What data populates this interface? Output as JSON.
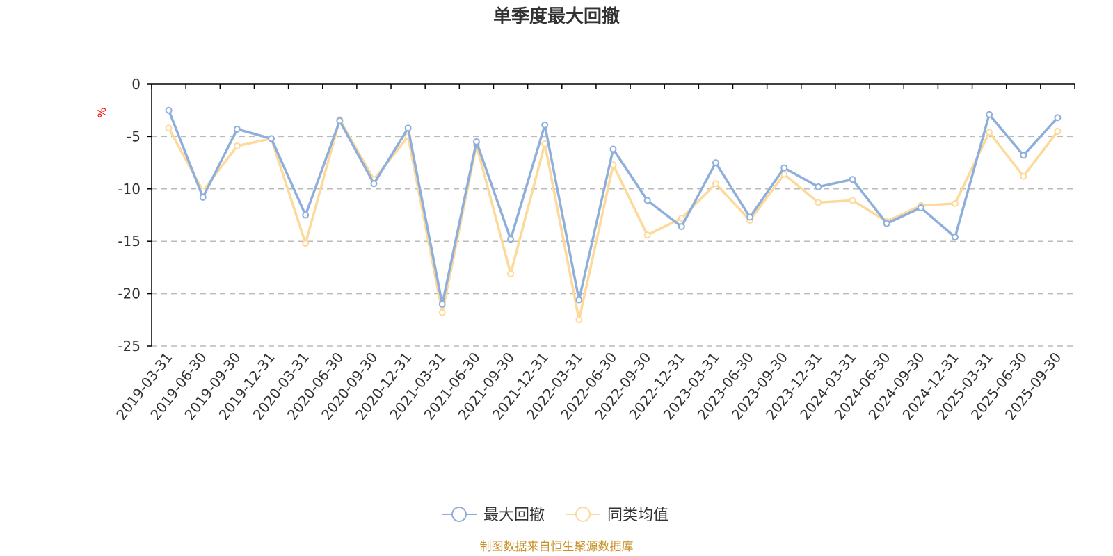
{
  "colors": {
    "max_drawdown": "#8eaedc",
    "peer_average": "#fdd99a",
    "axis": "#000000",
    "grid": "#bbbbbb",
    "source": "#c8922a"
  },
  "chart_data": {
    "type": "line",
    "title": "单季度最大回撤",
    "ylabel": "%",
    "ylim": [
      -25,
      0
    ],
    "yticks": [
      0,
      -5,
      -10,
      -15,
      -20,
      -25
    ],
    "grid": "horizontal dashed",
    "legend_position": "bottom-center",
    "categories": [
      "2019-03-31",
      "2019-06-30",
      "2019-09-30",
      "2019-12-31",
      "2020-03-31",
      "2020-06-30",
      "2020-09-30",
      "2020-12-31",
      "2021-03-31",
      "2021-06-30",
      "2021-09-30",
      "2021-12-31",
      "2022-03-31",
      "2022-06-30",
      "2022-09-30",
      "2022-12-31",
      "2023-03-31",
      "2023-06-30",
      "2023-09-30",
      "2023-12-31",
      "2024-03-31",
      "2024-06-30",
      "2024-09-30",
      "2024-12-31",
      "2025-03-31",
      "2025-06-30",
      "2025-09-30"
    ],
    "series": [
      {
        "name": "最大回撤",
        "values": [
          -2.5,
          -10.8,
          -4.3,
          -5.2,
          -12.5,
          -3.5,
          -9.5,
          -4.2,
          -21.0,
          -5.5,
          -14.8,
          -3.9,
          -20.6,
          -6.2,
          -11.1,
          -13.6,
          -7.5,
          -12.7,
          -8.0,
          -9.8,
          -9.1,
          -13.3,
          -11.8,
          -14.6,
          -2.9,
          -6.8,
          -3.2
        ]
      },
      {
        "name": "同类均值",
        "values": [
          -4.2,
          -10.2,
          -5.9,
          -5.2,
          -15.2,
          -3.4,
          -9.1,
          -5.0,
          -21.8,
          -5.8,
          -18.1,
          -5.7,
          -22.5,
          -7.7,
          -14.4,
          -12.8,
          -9.5,
          -13.0,
          -8.6,
          -11.3,
          -11.1,
          -13.1,
          -11.6,
          -11.4,
          -4.6,
          -8.8,
          -4.5
        ]
      }
    ]
  },
  "legend": {
    "item1": "最大回撤",
    "item2": "同类均值"
  },
  "source_note": "制图数据来自恒生聚源数据库"
}
